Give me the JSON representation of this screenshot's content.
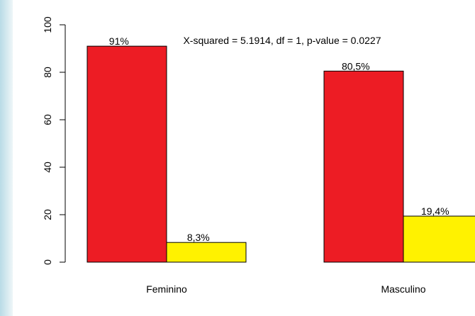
{
  "chart_data": {
    "type": "bar",
    "annotation": "X-squared = 5.1914, df = 1, p-value = 0.0227",
    "categories": [
      "Feminino",
      "Masculino"
    ],
    "series": [
      {
        "color": "#ed1c24",
        "values": [
          91,
          80.5
        ],
        "value_labels": [
          "91%",
          "80,5%"
        ]
      },
      {
        "color": "#fff200",
        "values": [
          8.3,
          19.4
        ],
        "value_labels": [
          "8,3%",
          "19,4%"
        ]
      }
    ],
    "ylim": [
      0,
      100
    ],
    "yticks": [
      0,
      20,
      40,
      60,
      80,
      100
    ]
  }
}
